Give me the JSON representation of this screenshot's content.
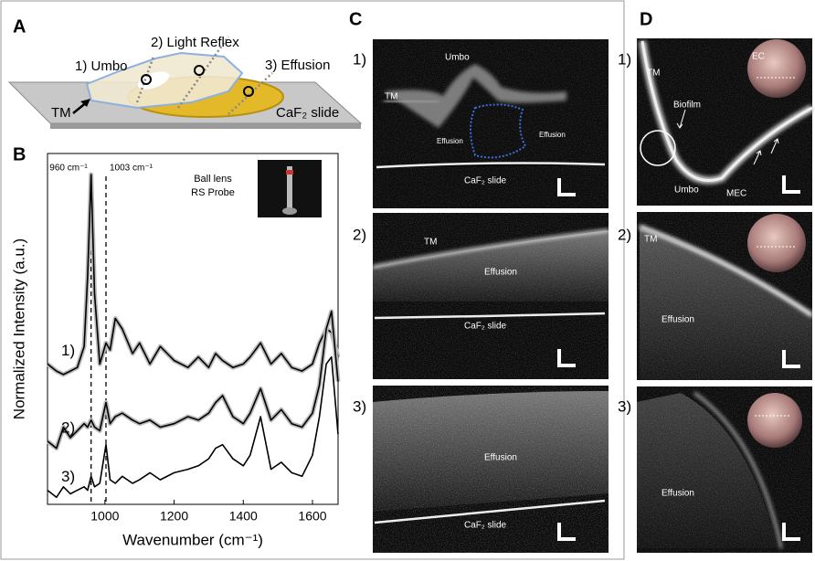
{
  "panel_labels": [
    "A",
    "B",
    "C",
    "D"
  ],
  "panel_a": {
    "labels": [
      "1) Umbo",
      "2) Light Reflex",
      "3) Effusion",
      "TM",
      "CaF₂ slide"
    ]
  },
  "chart_data": {
    "type": "line",
    "x_label": "Wavenumber (cm⁻¹)",
    "y_label": "Normalized Intensity (a.u.)",
    "xlim": [
      834,
      1674
    ],
    "ylim": [
      0,
      10
    ],
    "xticks": [
      1000,
      1200,
      1400,
      1600
    ],
    "marker_lines": [
      960,
      1003
    ],
    "annotations": [
      "960 cm⁻¹",
      "1003 cm⁻¹"
    ],
    "inset": [
      "Ball lens",
      "RS Probe"
    ],
    "x": [
      834,
      860,
      880,
      900,
      920,
      940,
      950,
      960,
      970,
      985,
      1003,
      1015,
      1030,
      1050,
      1080,
      1100,
      1130,
      1160,
      1200,
      1240,
      1270,
      1300,
      1320,
      1340,
      1370,
      1400,
      1420,
      1450,
      1480,
      1510,
      1540,
      1570,
      1600,
      1620,
      1640,
      1655,
      1674
    ],
    "series": [
      {
        "name": "1)",
        "color": "#000000",
        "values": [
          4.0,
          3.8,
          3.7,
          3.8,
          3.9,
          4.5,
          6.5,
          9.4,
          6.0,
          4.0,
          4.6,
          4.4,
          5.3,
          5.0,
          4.3,
          4.6,
          4.0,
          4.5,
          4.1,
          3.9,
          4.2,
          3.9,
          4.3,
          4.1,
          3.9,
          4.0,
          4.2,
          4.6,
          4.0,
          4.3,
          3.9,
          3.8,
          4.0,
          4.6,
          5.0,
          4.9,
          4.2
        ]
      },
      {
        "name": "2)",
        "color": "#000000",
        "values": [
          1.8,
          1.6,
          2.2,
          1.9,
          2.1,
          2.3,
          2.2,
          2.4,
          2.2,
          2.1,
          2.9,
          2.3,
          2.5,
          2.6,
          2.4,
          2.3,
          2.4,
          2.2,
          2.3,
          2.5,
          2.4,
          2.6,
          2.9,
          3.1,
          2.5,
          2.3,
          2.6,
          3.3,
          2.4,
          2.7,
          2.3,
          2.2,
          2.6,
          3.4,
          5.0,
          5.5,
          3.5
        ]
      },
      {
        "name": "3)",
        "color": "#000000",
        "values": [
          0.4,
          0.2,
          0.5,
          0.3,
          0.4,
          0.5,
          0.4,
          0.8,
          0.5,
          0.6,
          1.7,
          0.7,
          0.6,
          0.8,
          0.6,
          0.7,
          0.9,
          0.7,
          0.9,
          1.0,
          1.1,
          1.3,
          1.6,
          1.7,
          1.3,
          1.1,
          1.4,
          2.5,
          1.0,
          1.2,
          0.9,
          0.8,
          1.4,
          2.5,
          4.0,
          4.2,
          2.0
        ]
      }
    ]
  },
  "panel_c": {
    "rows": [
      {
        "label": "1)",
        "texts": [
          "Umbo",
          "TM",
          "Effusion",
          "Effusion",
          "CaF₂ slide"
        ]
      },
      {
        "label": "2)",
        "texts": [
          "TM",
          "Effusion",
          "CaF₂ slide"
        ]
      },
      {
        "label": "3)",
        "texts": [
          "Effusion",
          "CaF₂ slide"
        ]
      }
    ]
  },
  "panel_d": {
    "rows": [
      {
        "label": "1)",
        "texts": [
          "TM",
          "EC",
          "Biofilm",
          "Umbo",
          "MEC"
        ]
      },
      {
        "label": "2)",
        "texts": [
          "TM",
          "Effusion"
        ]
      },
      {
        "label": "3)",
        "texts": [
          "Effusion"
        ]
      }
    ]
  }
}
